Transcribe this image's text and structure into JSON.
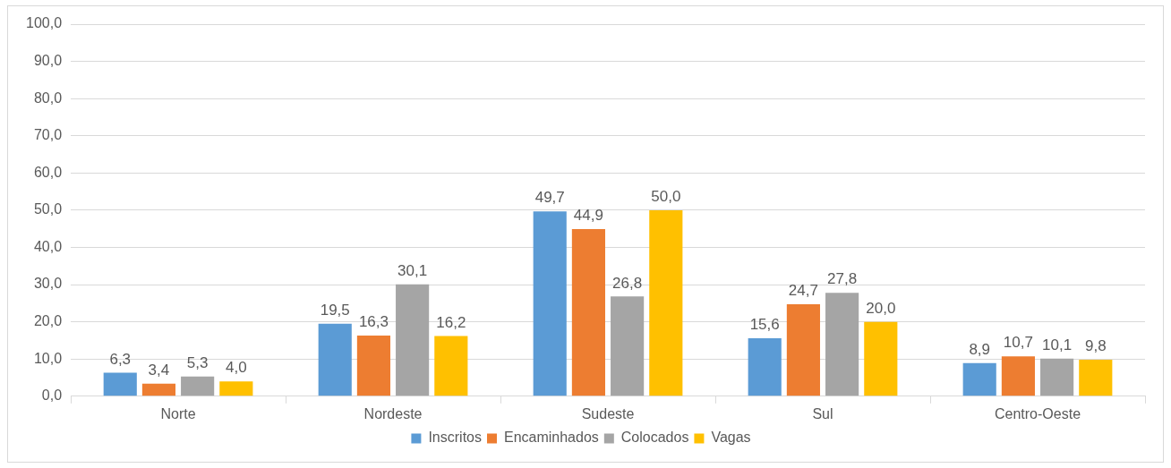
{
  "chart_data": {
    "type": "bar",
    "categories": [
      "Norte",
      "Nordeste",
      "Sudeste",
      "Sul",
      "Centro-Oeste"
    ],
    "series": [
      {
        "name": "Inscritos",
        "color": "#5b9bd5",
        "values": [
          6.3,
          19.5,
          49.7,
          15.6,
          8.9
        ],
        "value_labels": [
          "6,3",
          "19,5",
          "49,7",
          "15,6",
          "8,9"
        ]
      },
      {
        "name": "Encaminhados",
        "color": "#ed7d31",
        "values": [
          3.4,
          16.3,
          44.9,
          24.7,
          10.7
        ],
        "value_labels": [
          "3,4",
          "16,3",
          "44,9",
          "24,7",
          "10,7"
        ]
      },
      {
        "name": "Colocados",
        "color": "#a5a5a5",
        "values": [
          5.3,
          30.1,
          26.8,
          27.8,
          10.1
        ],
        "value_labels": [
          "5,3",
          "30,1",
          "26,8",
          "27,8",
          "10,1"
        ]
      },
      {
        "name": "Vagas",
        "color": "#ffc000",
        "values": [
          4.0,
          16.2,
          50.0,
          20.0,
          9.8
        ],
        "value_labels": [
          "4,0",
          "16,2",
          "50,0",
          "20,0",
          "9,8"
        ]
      }
    ],
    "ylim": [
      0,
      100
    ],
    "yticks": [
      {
        "value": 0,
        "label": "0,0"
      },
      {
        "value": 10,
        "label": "10,0"
      },
      {
        "value": 20,
        "label": "20,0"
      },
      {
        "value": 30,
        "label": "30,0"
      },
      {
        "value": 40,
        "label": "40,0"
      },
      {
        "value": 50,
        "label": "50,0"
      },
      {
        "value": 60,
        "label": "60,0"
      },
      {
        "value": 70,
        "label": "70,0"
      },
      {
        "value": 80,
        "label": "80,0"
      },
      {
        "value": 90,
        "label": "90,0"
      },
      {
        "value": 100,
        "label": "100,0"
      }
    ],
    "grid": "y",
    "legend": "bottom"
  }
}
